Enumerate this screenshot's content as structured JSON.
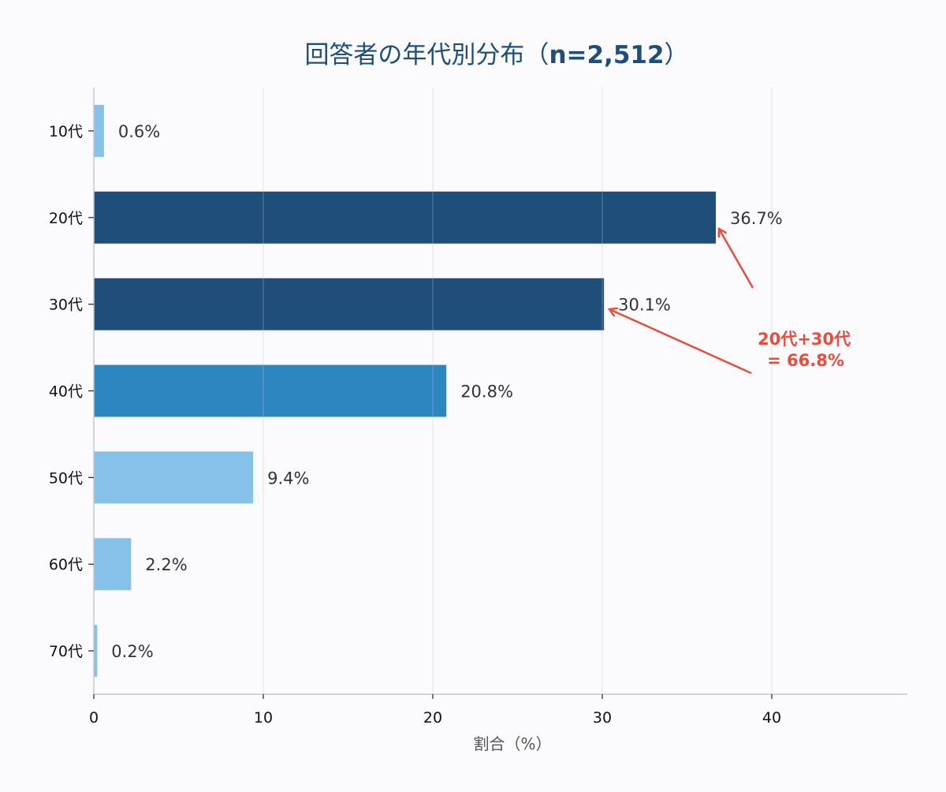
{
  "chart_data": {
    "type": "bar",
    "orientation": "horizontal",
    "title": "回答者の年代別分布（n=2,512）",
    "title_parts": {
      "main": "回答者の年代別分布（",
      "bold": "n=2,512",
      "close": "）"
    },
    "xlabel": "割合（%）",
    "ylabel": "",
    "xlim": [
      0,
      48
    ],
    "xticks": [
      0,
      10,
      20,
      30,
      40
    ],
    "grid": "x",
    "categories": [
      "10代",
      "20代",
      "30代",
      "40代",
      "50代",
      "60代",
      "70代"
    ],
    "values": [
      0.6,
      36.7,
      30.1,
      20.8,
      9.4,
      2.2,
      0.2
    ],
    "value_labels": [
      "0.6%",
      "36.7%",
      "30.1%",
      "20.8%",
      "9.4%",
      "2.2%",
      "0.2%"
    ],
    "colors": [
      "#85c1e9",
      "#1e4e79",
      "#1e4e79",
      "#2e86c1",
      "#85c1e9",
      "#85c1e9",
      "#85c1e9"
    ],
    "annotation": {
      "lines": [
        "20代+30代",
        "= 66.8%"
      ],
      "color": "#e74c3c",
      "arrows_to": [
        "20代",
        "30代"
      ]
    }
  }
}
